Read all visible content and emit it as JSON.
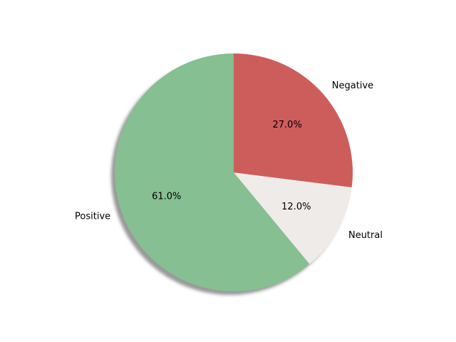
{
  "chart_data": {
    "type": "pie",
    "title": "",
    "shadow": true,
    "start_angle_deg": 90,
    "direction": "counterclockwise",
    "slices": [
      {
        "label": "Positive",
        "value": 61.0,
        "pct_text": "61.0%",
        "color": "#86bf91"
      },
      {
        "label": "Neutral",
        "value": 12.0,
        "pct_text": "12.0%",
        "color": "#efebe8"
      },
      {
        "label": "Negative",
        "value": 27.0,
        "pct_text": "27.0%",
        "color": "#cd5d5b"
      }
    ]
  }
}
